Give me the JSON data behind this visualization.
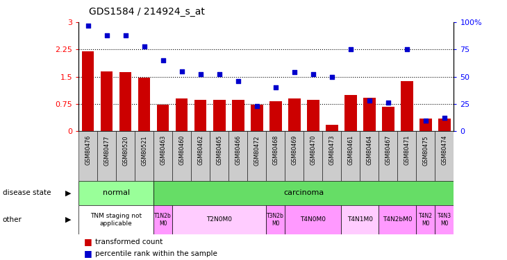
{
  "title": "GDS1584 / 214924_s_at",
  "samples": [
    "GSM80476",
    "GSM80477",
    "GSM80520",
    "GSM80521",
    "GSM80463",
    "GSM80460",
    "GSM80462",
    "GSM80465",
    "GSM80466",
    "GSM80472",
    "GSM80468",
    "GSM80469",
    "GSM80470",
    "GSM80473",
    "GSM80461",
    "GSM80464",
    "GSM80467",
    "GSM80471",
    "GSM80475",
    "GSM80474"
  ],
  "transformed_count": [
    2.2,
    1.65,
    1.62,
    1.47,
    0.73,
    0.9,
    0.87,
    0.87,
    0.87,
    0.73,
    0.82,
    0.9,
    0.87,
    0.18,
    1.0,
    0.93,
    0.67,
    1.38,
    0.35,
    0.35
  ],
  "percentile_rank": [
    97,
    88,
    88,
    78,
    65,
    55,
    52,
    52,
    46,
    23,
    40,
    54,
    52,
    50,
    75,
    28,
    26,
    75,
    10,
    12
  ],
  "ylim_left": [
    0,
    3
  ],
  "ylim_right": [
    0,
    100
  ],
  "yticks_left": [
    0,
    0.75,
    1.5,
    2.25,
    3
  ],
  "yticks_right": [
    0,
    25,
    50,
    75,
    100
  ],
  "bar_color": "#cc0000",
  "scatter_color": "#0000cc",
  "normal_color": "#99ff99",
  "carcinoma_color": "#66dd66",
  "other_groups": [
    {
      "label": "TNM staging not\napplicable",
      "start": 0,
      "end": 4,
      "color": "#ffffff"
    },
    {
      "label": "T1N2b\nM0",
      "start": 4,
      "end": 5,
      "color": "#ff99ff"
    },
    {
      "label": "T2N0M0",
      "start": 5,
      "end": 10,
      "color": "#ffccff"
    },
    {
      "label": "T3N2b\nM0",
      "start": 10,
      "end": 11,
      "color": "#ff99ff"
    },
    {
      "label": "T4N0M0",
      "start": 11,
      "end": 14,
      "color": "#ff99ff"
    },
    {
      "label": "T4N1M0",
      "start": 14,
      "end": 16,
      "color": "#ffccff"
    },
    {
      "label": "T4N2bM0",
      "start": 16,
      "end": 18,
      "color": "#ff99ff"
    },
    {
      "label": "T4N2\nM0",
      "start": 18,
      "end": 19,
      "color": "#ff99ff"
    },
    {
      "label": "T4N3\nM0",
      "start": 19,
      "end": 20,
      "color": "#ff99ff"
    }
  ]
}
